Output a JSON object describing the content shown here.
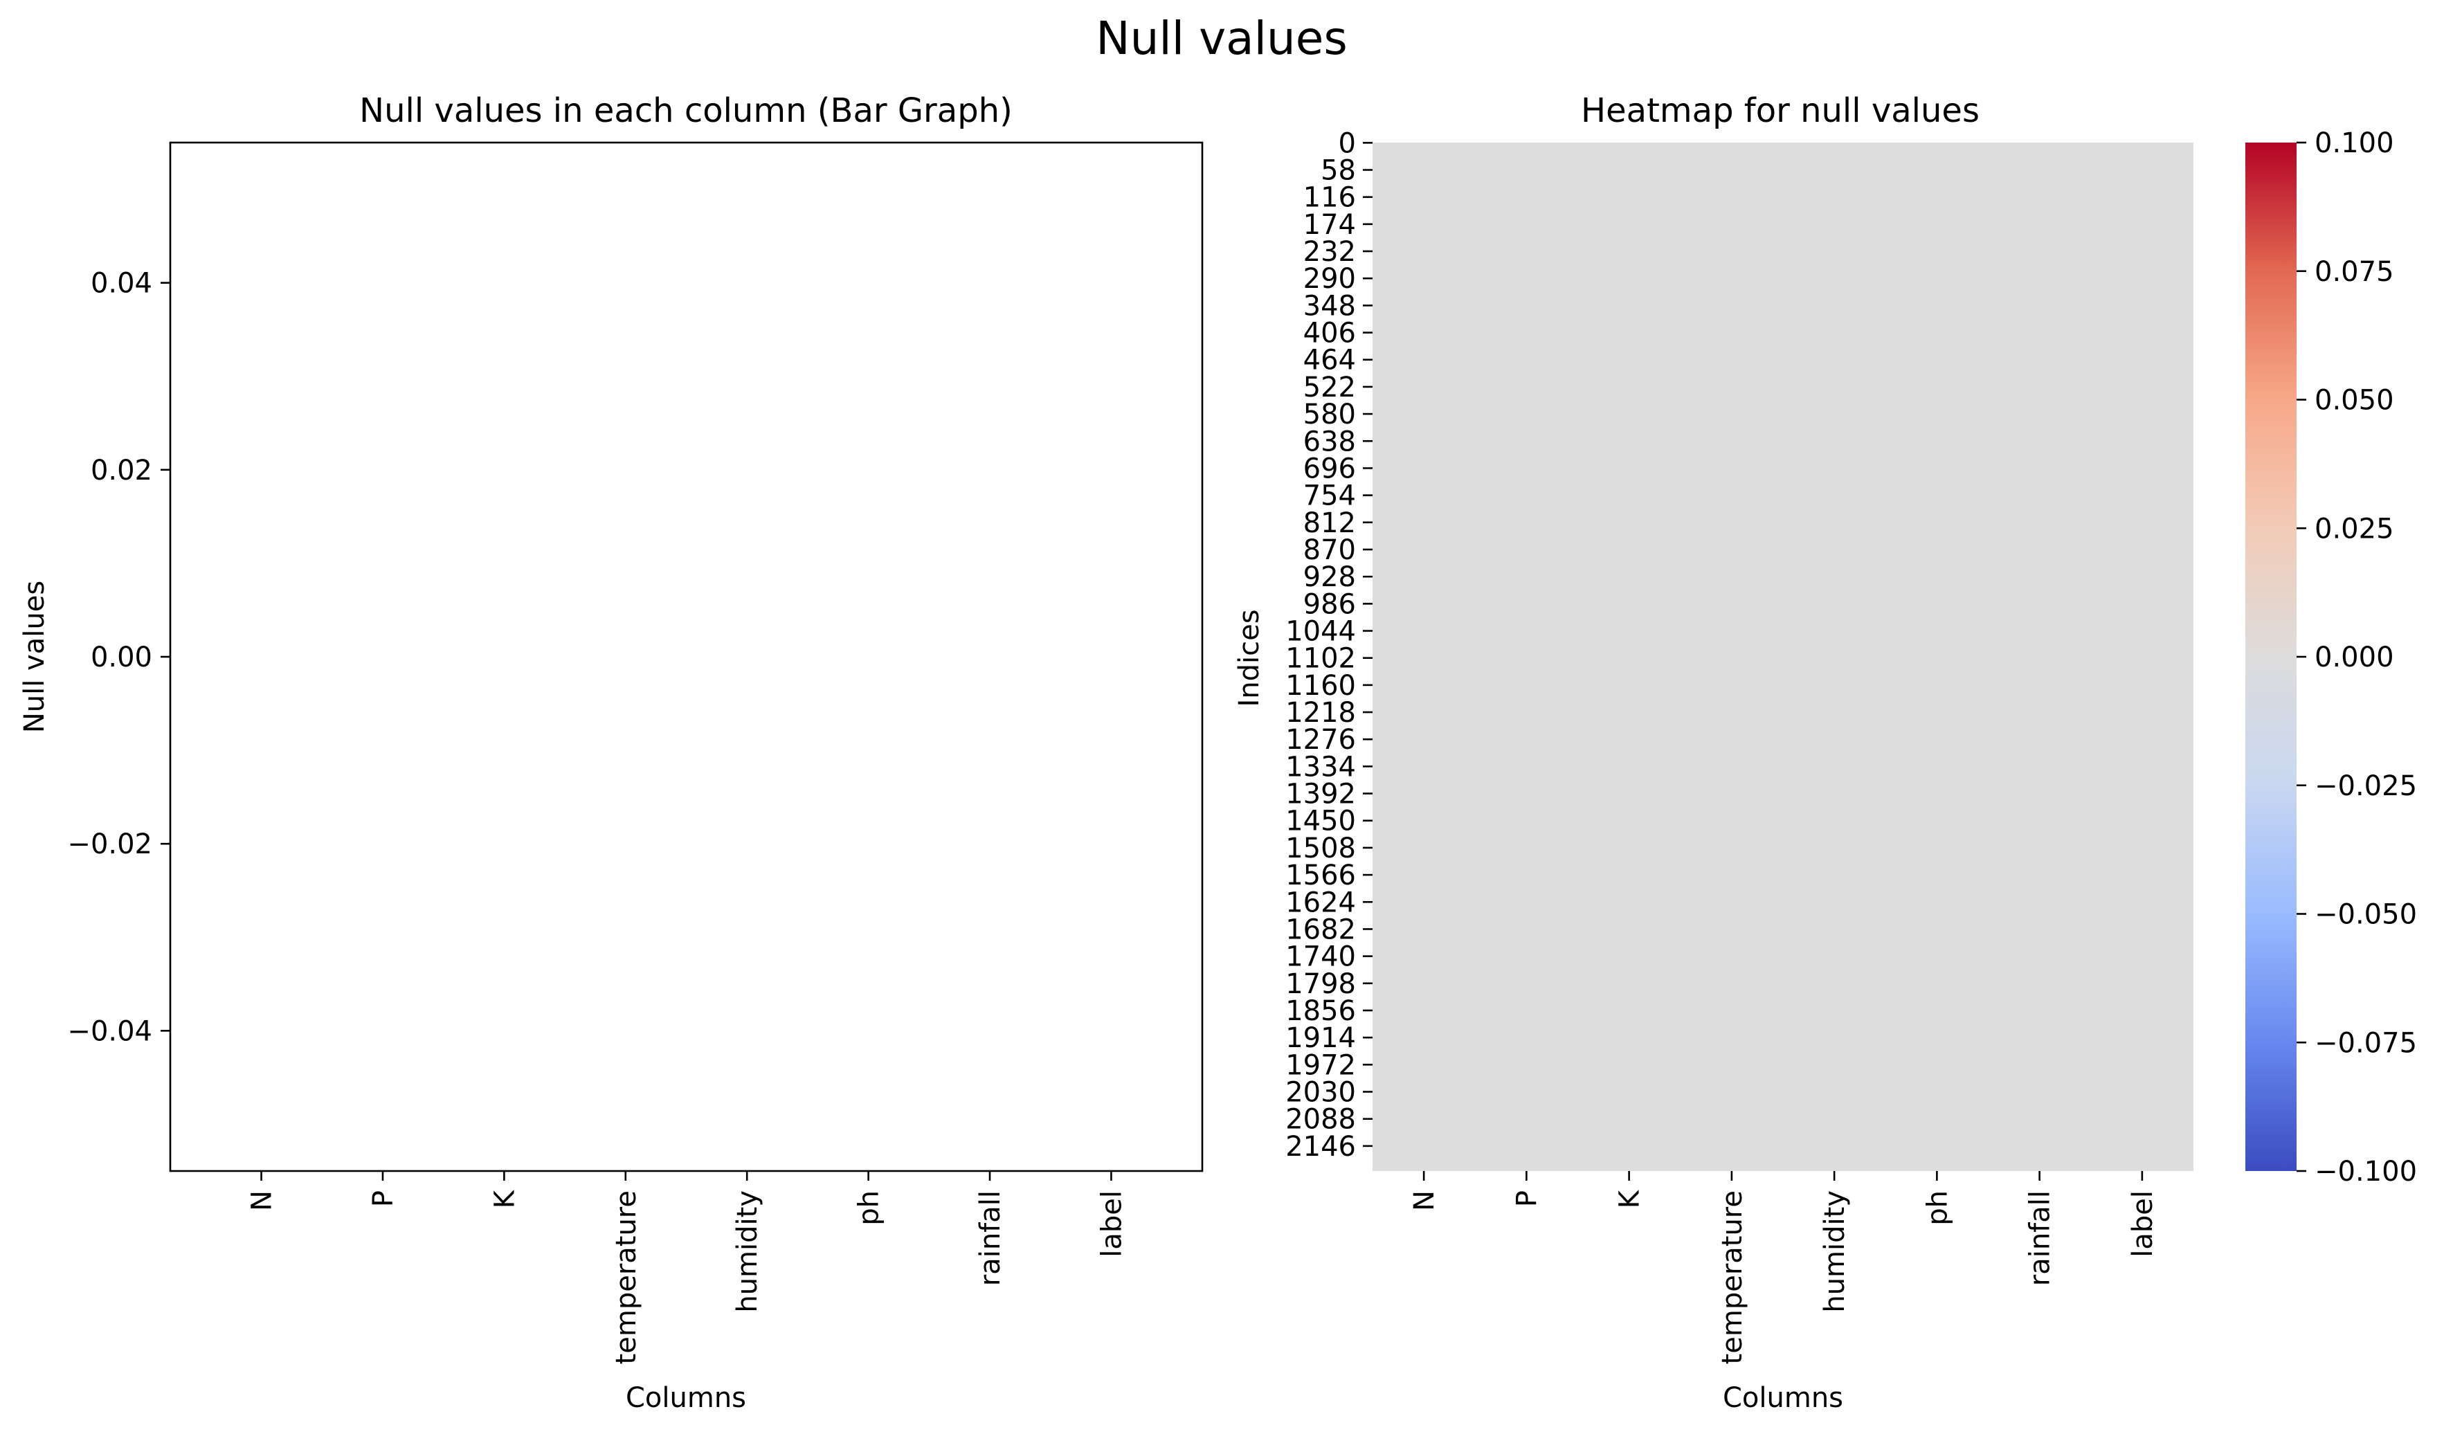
{
  "figure": {
    "suptitle": "Null values"
  },
  "chart_data": [
    {
      "type": "bar",
      "title": "Null values in each column (Bar Graph)",
      "xlabel": "Columns",
      "ylabel": "Null values",
      "categories": [
        "N",
        "P",
        "K",
        "temperature",
        "humidity",
        "ph",
        "rainfall",
        "label"
      ],
      "values": [
        0,
        0,
        0,
        0,
        0,
        0,
        0,
        0
      ],
      "ylim": [
        -0.055,
        0.055
      ],
      "yticks": [
        -0.04,
        -0.02,
        0.0,
        0.02,
        0.04
      ],
      "ytick_labels": [
        "−0.04",
        "−0.02",
        "0.00",
        "0.02",
        "0.04"
      ],
      "grid": false
    },
    {
      "type": "heatmap",
      "title": "Heatmap for null values",
      "xlabel": "Columns",
      "ylabel": "Indices",
      "columns": [
        "N",
        "P",
        "K",
        "temperature",
        "humidity",
        "ph",
        "rainfall",
        "label"
      ],
      "row_tick_labels": [
        "0",
        "58",
        "116",
        "174",
        "232",
        "290",
        "348",
        "406",
        "464",
        "522",
        "580",
        "638",
        "696",
        "754",
        "812",
        "870",
        "928",
        "986",
        "1044",
        "1102",
        "1160",
        "1218",
        "1276",
        "1334",
        "1392",
        "1450",
        "1508",
        "1566",
        "1624",
        "1682",
        "1740",
        "1798",
        "1856",
        "1914",
        "1972",
        "2030",
        "2088",
        "2146"
      ],
      "n_rows": 2200,
      "value": 0,
      "cell_color": "#dddddd",
      "colorbar": {
        "cmap": "coolwarm",
        "vmin": -0.1,
        "vmax": 0.1,
        "ticks": [
          -0.1,
          -0.075,
          -0.05,
          -0.025,
          0.0,
          0.025,
          0.05,
          0.075,
          0.1
        ],
        "tick_labels": [
          "−0.100",
          "−0.075",
          "−0.050",
          "−0.025",
          "0.000",
          "0.025",
          "0.050",
          "0.075",
          "0.100"
        ],
        "colors": [
          "#3b4cc0",
          "#6788ee",
          "#9abbff",
          "#c9d7f0",
          "#dddcdc",
          "#f2cbb7",
          "#f7a889",
          "#e26952",
          "#b40426"
        ]
      }
    }
  ]
}
